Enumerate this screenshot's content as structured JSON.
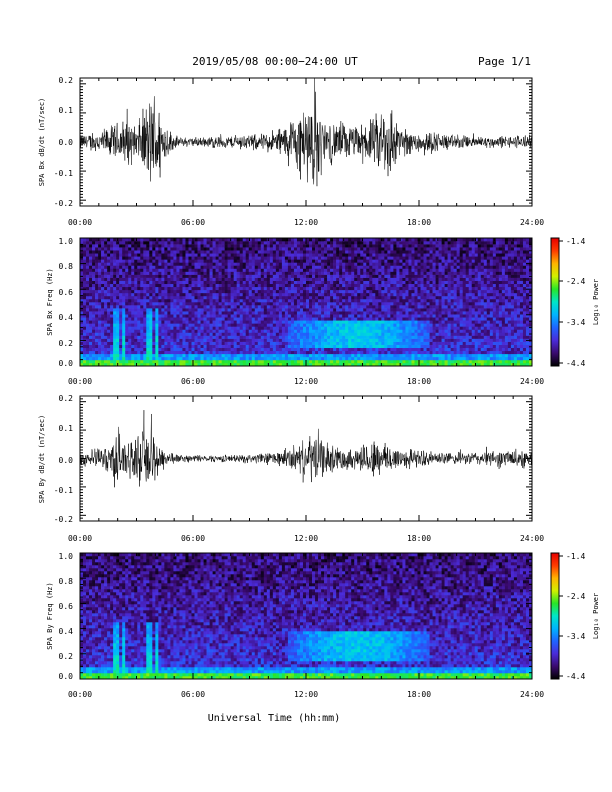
{
  "header": {
    "title": "2019/05/08  00:00−24:00 UT",
    "page": "Page 1/1"
  },
  "xlabel": "Universal Time (hh:mm)",
  "colorbar": {
    "label": "Log₁₀ Power",
    "ticks": [
      "-1.4",
      "-2.4",
      "-3.4",
      "-4.4"
    ],
    "range": [
      -4.4,
      -1.4
    ],
    "colors": [
      "#000000",
      "#3a0a6e",
      "#4a2bd8",
      "#1f64ff",
      "#00b4ff",
      "#00e6c8",
      "#28e628",
      "#d2f000",
      "#ffb400",
      "#ff3c00",
      "#e60000"
    ]
  },
  "chart_data": [
    {
      "type": "line",
      "ylabel": "SPA Bx dB/dt (nT/sec)",
      "xlim": [
        0,
        24
      ],
      "ylim": [
        -0.22,
        0.22
      ],
      "x_ticks": [
        "00:00",
        "06:00",
        "12:00",
        "18:00",
        "24:00"
      ],
      "y_ticks": [
        "0.2",
        "0.1",
        "0.0",
        "-0.1",
        "-0.2"
      ],
      "series": [
        {
          "x": [
            0.0,
            0.5,
            1.0,
            1.5,
            2.0,
            2.5,
            3.0,
            3.5,
            4.0,
            4.5,
            5.0,
            5.5,
            6.0,
            6.5,
            7.0,
            7.5,
            8.0,
            8.5,
            9.0,
            9.5,
            10.0,
            10.5,
            11.0,
            11.5,
            12.0,
            12.5,
            13.0,
            13.5,
            14.0,
            14.5,
            15.0,
            15.5,
            16.0,
            16.5,
            17.0,
            17.5,
            18.0,
            18.5,
            19.0,
            19.5,
            20.0,
            20.5,
            21.0,
            21.5,
            22.0,
            22.5,
            23.0,
            23.5,
            24.0
          ],
          "envelope": [
            0.03,
            0.035,
            0.045,
            0.06,
            0.08,
            0.1,
            0.07,
            0.15,
            0.22,
            0.08,
            0.025,
            0.02,
            0.02,
            0.02,
            0.025,
            0.025,
            0.025,
            0.03,
            0.03,
            0.03,
            0.04,
            0.06,
            0.07,
            0.13,
            0.15,
            0.22,
            0.08,
            0.08,
            0.08,
            0.06,
            0.07,
            0.08,
            0.15,
            0.17,
            0.06,
            0.05,
            0.05,
            0.04,
            0.04,
            0.03,
            0.03,
            0.025,
            0.025,
            0.025,
            0.025,
            0.025,
            0.025,
            0.03,
            0.025
          ]
        }
      ]
    },
    {
      "type": "heatmap",
      "ylabel": "SPA Bx Freq (Hz)",
      "xlim": [
        0,
        24
      ],
      "ylim": [
        0.0,
        1.0
      ],
      "x_ticks": [
        "00:00",
        "06:00",
        "12:00",
        "18:00",
        "24:00"
      ],
      "y_ticks": [
        "1.0",
        "0.8",
        "0.6",
        "0.4",
        "0.2",
        "0.0"
      ],
      "value_range": [
        -4.4,
        -1.4
      ],
      "features": [
        {
          "kind": "low-frequency band",
          "freq_max_hz": 0.05,
          "level": -2.6
        },
        {
          "kind": "enhancement",
          "time_range_h": [
            11.0,
            18.5
          ],
          "freq_range_hz": [
            0.15,
            0.35
          ],
          "level": -3.1
        },
        {
          "kind": "broadband bursts",
          "times_h": [
            1.9,
            2.3,
            3.7,
            4.1
          ],
          "level": -2.8
        }
      ]
    },
    {
      "type": "line",
      "ylabel": "SPA By dB/dt (nT/sec)",
      "xlim": [
        0,
        24
      ],
      "ylim": [
        -0.22,
        0.22
      ],
      "x_ticks": [
        "00:00",
        "06:00",
        "12:00",
        "18:00",
        "24:00"
      ],
      "y_ticks": [
        "0.2",
        "0.1",
        "0.0",
        "-0.1",
        "-0.2"
      ],
      "series": [
        {
          "x": [
            0.0,
            0.5,
            1.0,
            1.5,
            2.0,
            2.5,
            3.0,
            3.5,
            4.0,
            4.5,
            5.0,
            5.5,
            6.0,
            6.5,
            7.0,
            7.5,
            8.0,
            8.5,
            9.0,
            9.5,
            10.0,
            10.5,
            11.0,
            11.5,
            12.0,
            12.5,
            13.0,
            13.5,
            14.0,
            14.5,
            15.0,
            15.5,
            16.0,
            16.5,
            17.0,
            17.5,
            18.0,
            18.5,
            19.0,
            19.5,
            20.0,
            20.5,
            21.0,
            21.5,
            22.0,
            22.5,
            23.0,
            23.5,
            24.0
          ],
          "envelope": [
            0.03,
            0.035,
            0.04,
            0.06,
            0.13,
            0.08,
            0.08,
            0.15,
            0.1,
            0.04,
            0.02,
            0.015,
            0.015,
            0.015,
            0.015,
            0.015,
            0.015,
            0.015,
            0.02,
            0.02,
            0.025,
            0.03,
            0.04,
            0.06,
            0.07,
            0.13,
            0.06,
            0.05,
            0.05,
            0.04,
            0.06,
            0.08,
            0.08,
            0.06,
            0.05,
            0.04,
            0.035,
            0.03,
            0.025,
            0.025,
            0.025,
            0.025,
            0.03,
            0.03,
            0.035,
            0.035,
            0.04,
            0.04,
            0.03
          ]
        }
      ]
    },
    {
      "type": "heatmap",
      "ylabel": "SPA By Freq (Hz)",
      "xlim": [
        0,
        24
      ],
      "ylim": [
        0.0,
        1.0
      ],
      "x_ticks": [
        "00:00",
        "06:00",
        "12:00",
        "18:00",
        "24:00"
      ],
      "y_ticks": [
        "1.0",
        "0.8",
        "0.6",
        "0.4",
        "0.2",
        "0.0"
      ],
      "value_range": [
        -4.4,
        -1.4
      ],
      "features": [
        {
          "kind": "low-frequency band",
          "freq_max_hz": 0.05,
          "level": -2.6
        },
        {
          "kind": "enhancement",
          "time_range_h": [
            11.0,
            18.5
          ],
          "freq_range_hz": [
            0.15,
            0.38
          ],
          "level": -3.1
        },
        {
          "kind": "broadband bursts",
          "times_h": [
            1.9,
            2.3,
            3.7,
            4.1
          ],
          "level": -2.8
        }
      ]
    }
  ]
}
